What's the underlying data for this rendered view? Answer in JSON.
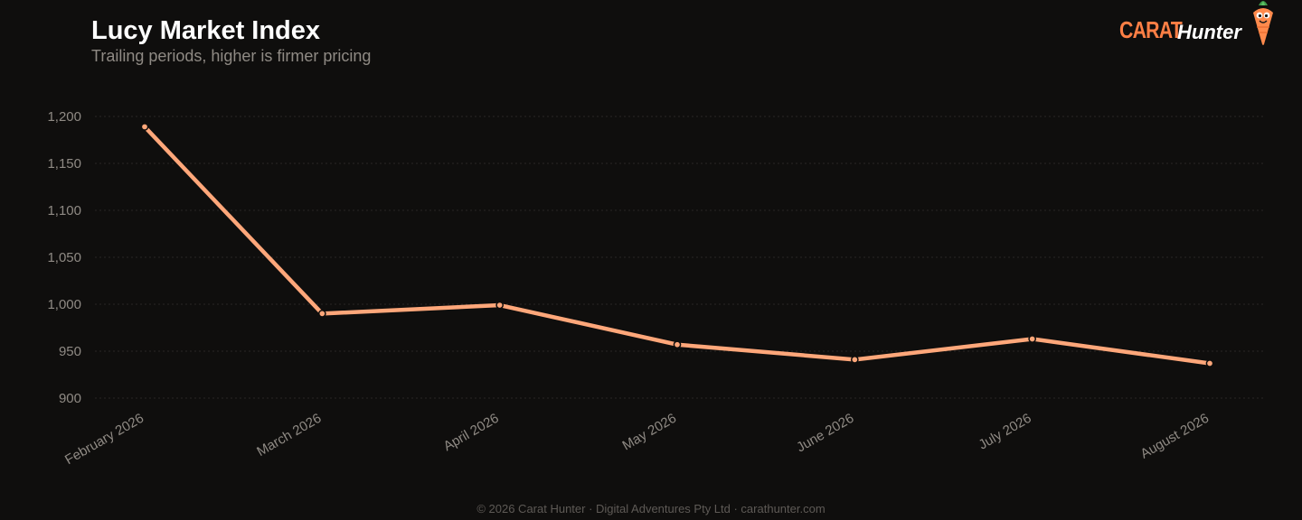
{
  "header": {
    "title": "Lucy Market Index",
    "subtitle": "Trailing periods, higher is firmer pricing"
  },
  "logo": {
    "carat": "CARAT",
    "hunter": "Hunter",
    "mascot_icon": "carrot-mascot-icon"
  },
  "colors": {
    "background": "#0f0e0d",
    "line": "#ffa77a",
    "grid": "#2a2725",
    "tick_text": "#8f8a84",
    "brand": "#ff7f45"
  },
  "footer": {
    "text": "© 2026 Carat Hunter · Digital Adventures Pty Ltd · carathunter.com"
  },
  "chart_data": {
    "type": "line",
    "title": "Lucy Market Index",
    "subtitle": "Trailing periods, higher is firmer pricing",
    "xlabel": "",
    "ylabel": "",
    "categories": [
      "February 2026",
      "March 2026",
      "April 2026",
      "May 2026",
      "June 2026",
      "July 2026",
      "August 2026"
    ],
    "series": [
      {
        "values": [
          1189,
          990,
          999,
          957,
          941,
          963,
          937
        ]
      }
    ],
    "ylim": [
      900,
      1200
    ],
    "yticks": [
      900,
      950,
      1000,
      1050,
      1100,
      1150,
      1200
    ],
    "ytick_labels": [
      "900",
      "950",
      "1,000",
      "1,050",
      "1,100",
      "1,150",
      "1,200"
    ],
    "grid": true,
    "legend": "none"
  }
}
